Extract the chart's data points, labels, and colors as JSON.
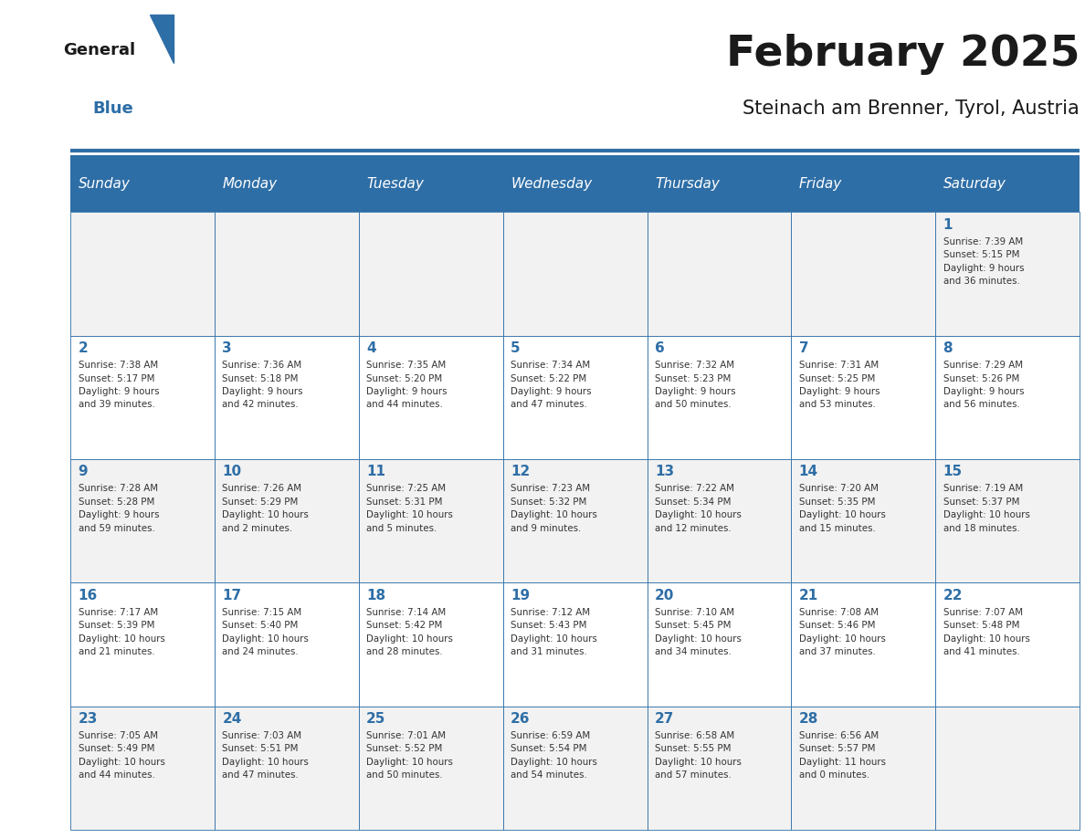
{
  "title": "February 2025",
  "subtitle": "Steinach am Brenner, Tyrol, Austria",
  "days_of_week": [
    "Sunday",
    "Monday",
    "Tuesday",
    "Wednesday",
    "Thursday",
    "Friday",
    "Saturday"
  ],
  "header_bg": "#2E6EA6",
  "header_text": "#FFFFFF",
  "cell_bg_odd": "#F2F2F2",
  "cell_bg_even": "#FFFFFF",
  "border_color": "#2E6EA6",
  "title_color": "#1a1a1a",
  "subtitle_color": "#1a1a1a",
  "day_number_color": "#2E6EA6",
  "cell_text_color": "#333333",
  "logo_general_color": "#1a1a1a",
  "logo_blue_color": "#2E6EA6",
  "calendar_data": [
    [
      {
        "day": null,
        "info": null
      },
      {
        "day": null,
        "info": null
      },
      {
        "day": null,
        "info": null
      },
      {
        "day": null,
        "info": null
      },
      {
        "day": null,
        "info": null
      },
      {
        "day": null,
        "info": null
      },
      {
        "day": 1,
        "info": "Sunrise: 7:39 AM\nSunset: 5:15 PM\nDaylight: 9 hours\nand 36 minutes."
      }
    ],
    [
      {
        "day": 2,
        "info": "Sunrise: 7:38 AM\nSunset: 5:17 PM\nDaylight: 9 hours\nand 39 minutes."
      },
      {
        "day": 3,
        "info": "Sunrise: 7:36 AM\nSunset: 5:18 PM\nDaylight: 9 hours\nand 42 minutes."
      },
      {
        "day": 4,
        "info": "Sunrise: 7:35 AM\nSunset: 5:20 PM\nDaylight: 9 hours\nand 44 minutes."
      },
      {
        "day": 5,
        "info": "Sunrise: 7:34 AM\nSunset: 5:22 PM\nDaylight: 9 hours\nand 47 minutes."
      },
      {
        "day": 6,
        "info": "Sunrise: 7:32 AM\nSunset: 5:23 PM\nDaylight: 9 hours\nand 50 minutes."
      },
      {
        "day": 7,
        "info": "Sunrise: 7:31 AM\nSunset: 5:25 PM\nDaylight: 9 hours\nand 53 minutes."
      },
      {
        "day": 8,
        "info": "Sunrise: 7:29 AM\nSunset: 5:26 PM\nDaylight: 9 hours\nand 56 minutes."
      }
    ],
    [
      {
        "day": 9,
        "info": "Sunrise: 7:28 AM\nSunset: 5:28 PM\nDaylight: 9 hours\nand 59 minutes."
      },
      {
        "day": 10,
        "info": "Sunrise: 7:26 AM\nSunset: 5:29 PM\nDaylight: 10 hours\nand 2 minutes."
      },
      {
        "day": 11,
        "info": "Sunrise: 7:25 AM\nSunset: 5:31 PM\nDaylight: 10 hours\nand 5 minutes."
      },
      {
        "day": 12,
        "info": "Sunrise: 7:23 AM\nSunset: 5:32 PM\nDaylight: 10 hours\nand 9 minutes."
      },
      {
        "day": 13,
        "info": "Sunrise: 7:22 AM\nSunset: 5:34 PM\nDaylight: 10 hours\nand 12 minutes."
      },
      {
        "day": 14,
        "info": "Sunrise: 7:20 AM\nSunset: 5:35 PM\nDaylight: 10 hours\nand 15 minutes."
      },
      {
        "day": 15,
        "info": "Sunrise: 7:19 AM\nSunset: 5:37 PM\nDaylight: 10 hours\nand 18 minutes."
      }
    ],
    [
      {
        "day": 16,
        "info": "Sunrise: 7:17 AM\nSunset: 5:39 PM\nDaylight: 10 hours\nand 21 minutes."
      },
      {
        "day": 17,
        "info": "Sunrise: 7:15 AM\nSunset: 5:40 PM\nDaylight: 10 hours\nand 24 minutes."
      },
      {
        "day": 18,
        "info": "Sunrise: 7:14 AM\nSunset: 5:42 PM\nDaylight: 10 hours\nand 28 minutes."
      },
      {
        "day": 19,
        "info": "Sunrise: 7:12 AM\nSunset: 5:43 PM\nDaylight: 10 hours\nand 31 minutes."
      },
      {
        "day": 20,
        "info": "Sunrise: 7:10 AM\nSunset: 5:45 PM\nDaylight: 10 hours\nand 34 minutes."
      },
      {
        "day": 21,
        "info": "Sunrise: 7:08 AM\nSunset: 5:46 PM\nDaylight: 10 hours\nand 37 minutes."
      },
      {
        "day": 22,
        "info": "Sunrise: 7:07 AM\nSunset: 5:48 PM\nDaylight: 10 hours\nand 41 minutes."
      }
    ],
    [
      {
        "day": 23,
        "info": "Sunrise: 7:05 AM\nSunset: 5:49 PM\nDaylight: 10 hours\nand 44 minutes."
      },
      {
        "day": 24,
        "info": "Sunrise: 7:03 AM\nSunset: 5:51 PM\nDaylight: 10 hours\nand 47 minutes."
      },
      {
        "day": 25,
        "info": "Sunrise: 7:01 AM\nSunset: 5:52 PM\nDaylight: 10 hours\nand 50 minutes."
      },
      {
        "day": 26,
        "info": "Sunrise: 6:59 AM\nSunset: 5:54 PM\nDaylight: 10 hours\nand 54 minutes."
      },
      {
        "day": 27,
        "info": "Sunrise: 6:58 AM\nSunset: 5:55 PM\nDaylight: 10 hours\nand 57 minutes."
      },
      {
        "day": 28,
        "info": "Sunrise: 6:56 AM\nSunset: 5:57 PM\nDaylight: 11 hours\nand 0 minutes."
      },
      {
        "day": null,
        "info": null
      }
    ]
  ]
}
